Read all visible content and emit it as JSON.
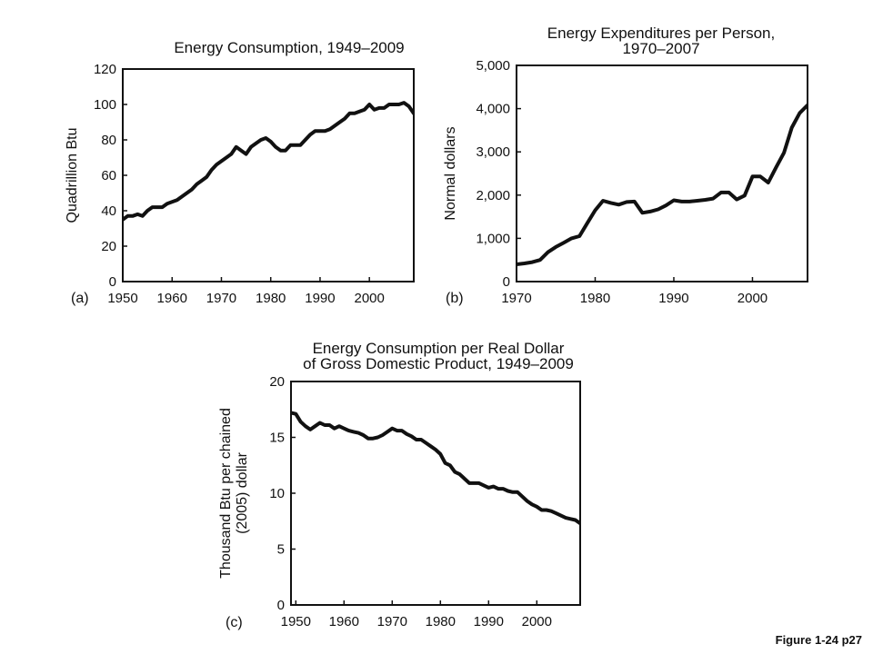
{
  "caption": "Figure 1-24 p27",
  "chart_data": [
    {
      "type": "line",
      "panel": "(a)",
      "title": [
        "Energy Consumption, 1949–2009"
      ],
      "xlabel": "",
      "ylabel": [
        "Quadrillion Btu"
      ],
      "xlim": [
        1950,
        2009
      ],
      "ylim": [
        0,
        120
      ],
      "xticks": [
        1950,
        1960,
        1970,
        1980,
        1990,
        2000
      ],
      "yticks": [
        0,
        20,
        40,
        60,
        80,
        100,
        120
      ],
      "ytick_labels": [
        "0",
        "20",
        "40",
        "60",
        "80",
        "100",
        "120"
      ],
      "grid": false,
      "series": [
        {
          "x": [
            1949,
            1950,
            1951,
            1952,
            1953,
            1954,
            1955,
            1956,
            1957,
            1958,
            1959,
            1960,
            1961,
            1962,
            1963,
            1964,
            1965,
            1966,
            1967,
            1968,
            1969,
            1970,
            1971,
            1972,
            1973,
            1974,
            1975,
            1976,
            1977,
            1978,
            1979,
            1980,
            1981,
            1982,
            1983,
            1984,
            1985,
            1986,
            1987,
            1988,
            1989,
            1990,
            1991,
            1992,
            1993,
            1994,
            1995,
            1996,
            1997,
            1998,
            1999,
            2000,
            2001,
            2002,
            2003,
            2004,
            2005,
            2006,
            2007,
            2008,
            2009
          ],
          "y": [
            32,
            35,
            37,
            37,
            38,
            37,
            40,
            42,
            42,
            42,
            44,
            45,
            46,
            48,
            50,
            52,
            55,
            57,
            59,
            63,
            66,
            68,
            70,
            72,
            76,
            74,
            72,
            76,
            78,
            80,
            81,
            79,
            76,
            74,
            74,
            77,
            77,
            77,
            80,
            83,
            85,
            85,
            85,
            86,
            88,
            90,
            92,
            95,
            95,
            96,
            97,
            100,
            97,
            98,
            98,
            100,
            100,
            100,
            101,
            99,
            95
          ]
        }
      ]
    },
    {
      "type": "line",
      "panel": "(b)",
      "title": [
        "Energy Expenditures per Person,",
        "1970–2007"
      ],
      "xlabel": "",
      "ylabel": [
        "Normal dollars"
      ],
      "xlim": [
        1970,
        2007
      ],
      "ylim": [
        0,
        5000
      ],
      "xticks": [
        1970,
        1980,
        1990,
        2000
      ],
      "yticks": [
        0,
        1000,
        2000,
        3000,
        4000,
        5000
      ],
      "ytick_labels": [
        "0",
        "1,000",
        "2,000",
        "3,000",
        "4,000",
        "5,000"
      ],
      "grid": false,
      "series": [
        {
          "x": [
            1970,
            1971,
            1972,
            1973,
            1974,
            1975,
            1976,
            1977,
            1978,
            1979,
            1980,
            1981,
            1982,
            1983,
            1984,
            1985,
            1986,
            1987,
            1988,
            1989,
            1990,
            1991,
            1992,
            1993,
            1994,
            1995,
            1996,
            1997,
            1998,
            1999,
            2000,
            2001,
            2002,
            2003,
            2004,
            2005,
            2006,
            2007
          ],
          "y": [
            400,
            420,
            450,
            500,
            680,
            800,
            900,
            1000,
            1050,
            1350,
            1650,
            1870,
            1820,
            1780,
            1840,
            1850,
            1590,
            1620,
            1670,
            1760,
            1880,
            1850,
            1850,
            1870,
            1890,
            1920,
            2060,
            2060,
            1900,
            1990,
            2430,
            2430,
            2290,
            2640,
            2980,
            3560,
            3900,
            4080
          ]
        }
      ]
    },
    {
      "type": "line",
      "panel": "(c)",
      "title": [
        "Energy Consumption per Real Dollar",
        "of Gross Domestic Product, 1949–2009"
      ],
      "xlabel": "",
      "ylabel": [
        "Thousand Btu per chained",
        "(2005) dollar"
      ],
      "xlim": [
        1949,
        2009
      ],
      "ylim": [
        0,
        20
      ],
      "xticks": [
        1950,
        1960,
        1970,
        1980,
        1990,
        2000
      ],
      "yticks": [
        0,
        5,
        10,
        15,
        20
      ],
      "ytick_labels": [
        "0",
        "5",
        "10",
        "15",
        "20"
      ],
      "grid": false,
      "series": [
        {
          "x": [
            1949,
            1950,
            1951,
            1952,
            1953,
            1954,
            1955,
            1956,
            1957,
            1958,
            1959,
            1960,
            1961,
            1962,
            1963,
            1964,
            1965,
            1966,
            1967,
            1968,
            1969,
            1970,
            1971,
            1972,
            1973,
            1974,
            1975,
            1976,
            1977,
            1978,
            1979,
            1980,
            1981,
            1982,
            1983,
            1984,
            1985,
            1986,
            1987,
            1988,
            1989,
            1990,
            1991,
            1992,
            1993,
            1994,
            1995,
            1996,
            1997,
            1998,
            1999,
            2000,
            2001,
            2002,
            2003,
            2004,
            2005,
            2006,
            2007,
            2008,
            2009
          ],
          "y": [
            17.2,
            17.1,
            16.4,
            16.0,
            15.7,
            16.0,
            16.3,
            16.1,
            16.1,
            15.8,
            16.0,
            15.8,
            15.6,
            15.5,
            15.4,
            15.2,
            14.9,
            14.9,
            15.0,
            15.2,
            15.5,
            15.8,
            15.6,
            15.6,
            15.3,
            15.1,
            14.8,
            14.8,
            14.5,
            14.2,
            13.9,
            13.5,
            12.7,
            12.5,
            11.9,
            11.7,
            11.3,
            10.9,
            10.9,
            10.9,
            10.7,
            10.5,
            10.6,
            10.4,
            10.4,
            10.2,
            10.1,
            10.1,
            9.7,
            9.3,
            9.0,
            8.8,
            8.5,
            8.5,
            8.4,
            8.2,
            8.0,
            7.8,
            7.7,
            7.6,
            7.3
          ]
        }
      ]
    }
  ]
}
